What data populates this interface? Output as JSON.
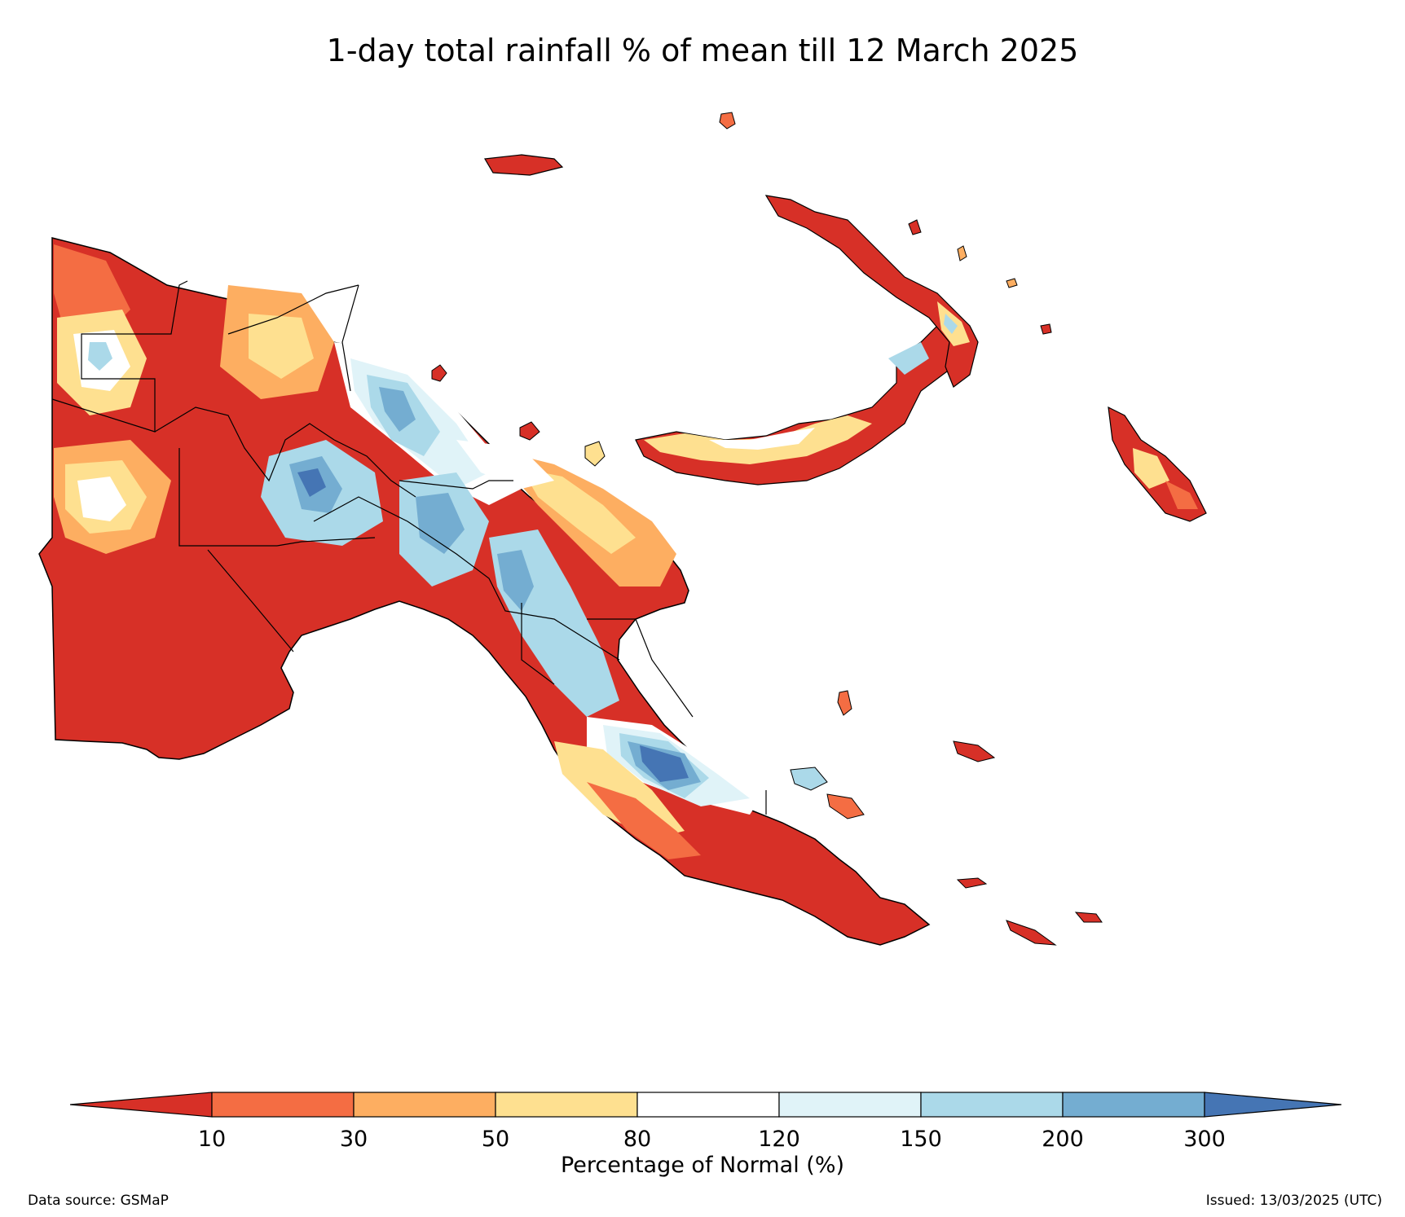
{
  "title": "1-day total rainfall % of mean till 12 March 2025",
  "colorbar": {
    "title": "Percentage of Normal (%)",
    "ticks": [
      "10",
      "30",
      "50",
      "80",
      "120",
      "150",
      "200",
      "300"
    ],
    "under_color": "#d73027",
    "over_color": "#4575b4",
    "bins": [
      {
        "range": "10-30",
        "color": "#f46d43"
      },
      {
        "range": "30-50",
        "color": "#fdae61"
      },
      {
        "range": "50-80",
        "color": "#fee090"
      },
      {
        "range": "80-120",
        "color": "#ffffff"
      },
      {
        "range": "120-150",
        "color": "#e0f3f8"
      },
      {
        "range": "150-200",
        "color": "#abd9e9"
      },
      {
        "range": "200-300",
        "color": "#74add1"
      }
    ]
  },
  "footer": {
    "source": "Data source: GSMaP",
    "issued": "Issued: 13/03/2025 (UTC)"
  }
}
